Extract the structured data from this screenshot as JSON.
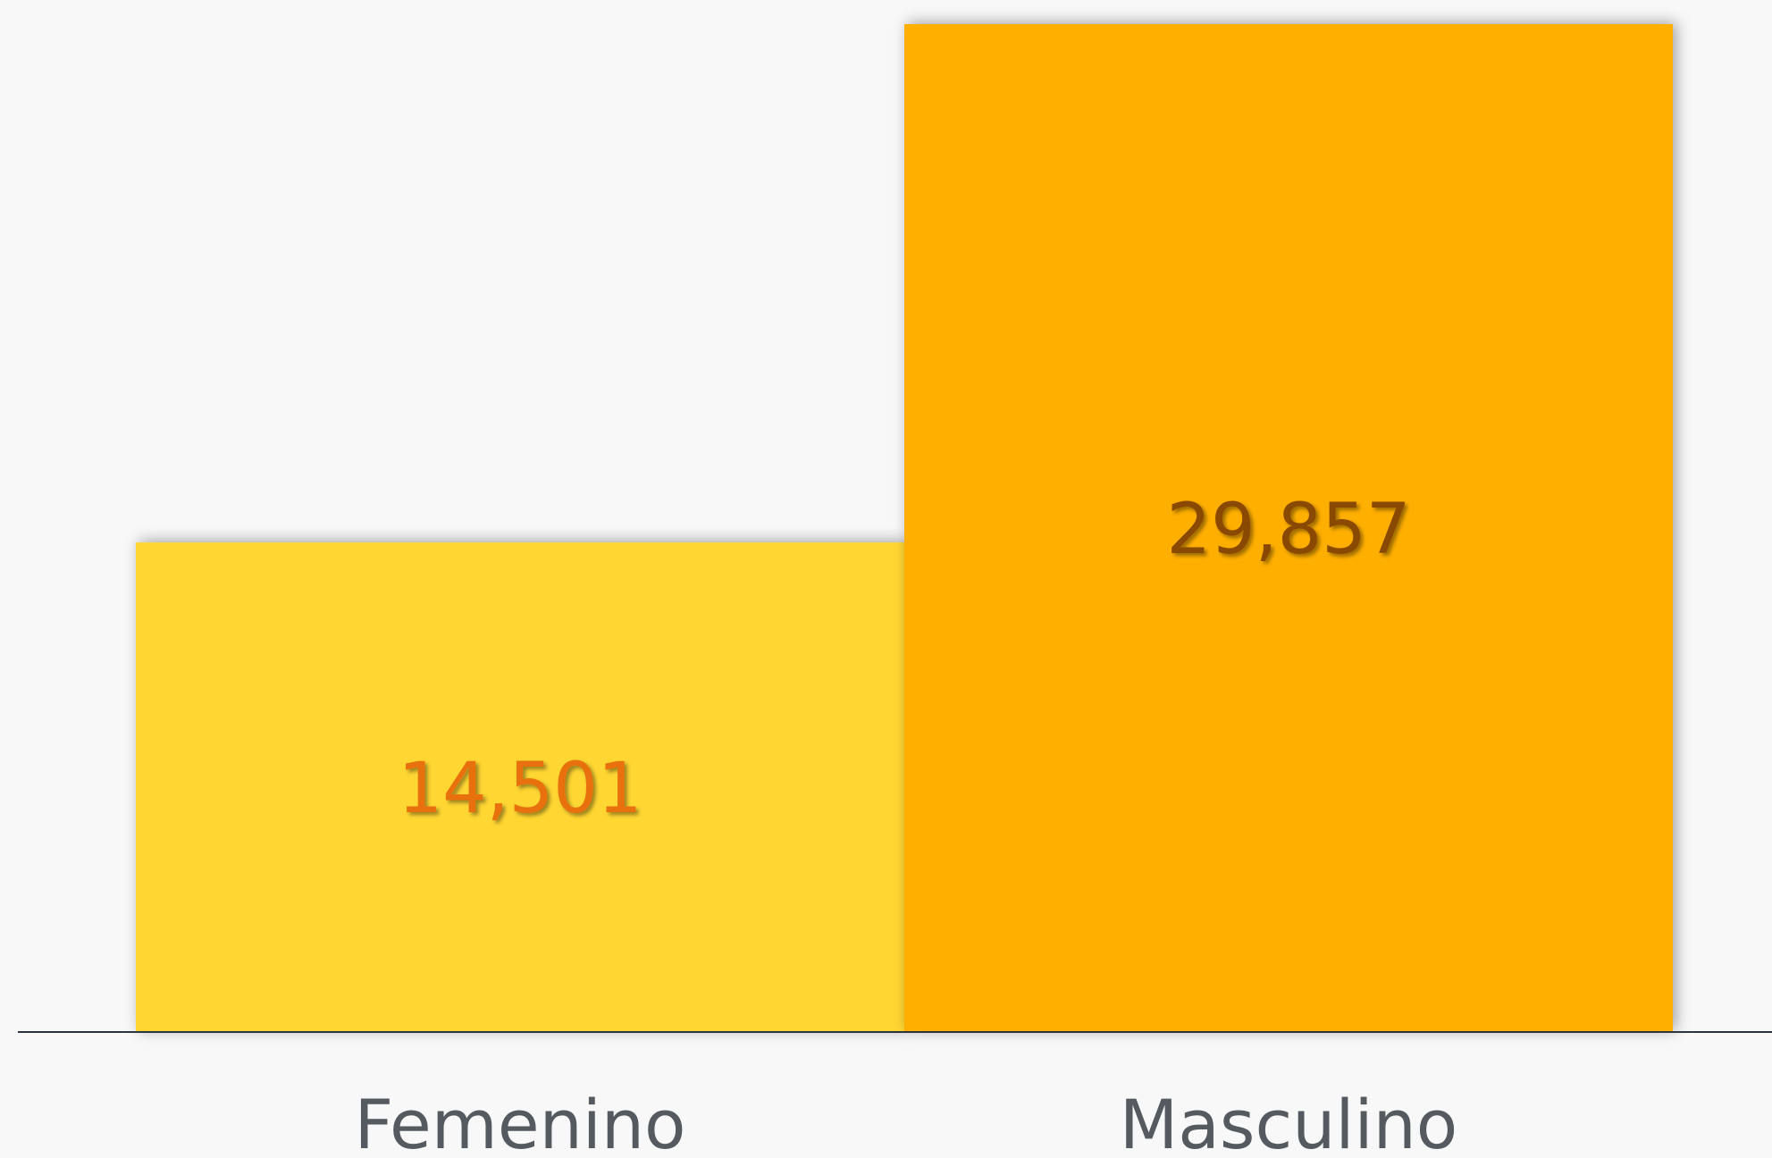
{
  "chart_data": {
    "type": "bar",
    "categories": [
      "Femenino",
      "Masculino"
    ],
    "values": [
      14501,
      29857
    ],
    "value_labels": [
      "14,501",
      "29,857"
    ],
    "colors": [
      "#ffd630",
      "#ffaf00"
    ],
    "label_colors": [
      "#e8700a",
      "#8a4800"
    ]
  }
}
